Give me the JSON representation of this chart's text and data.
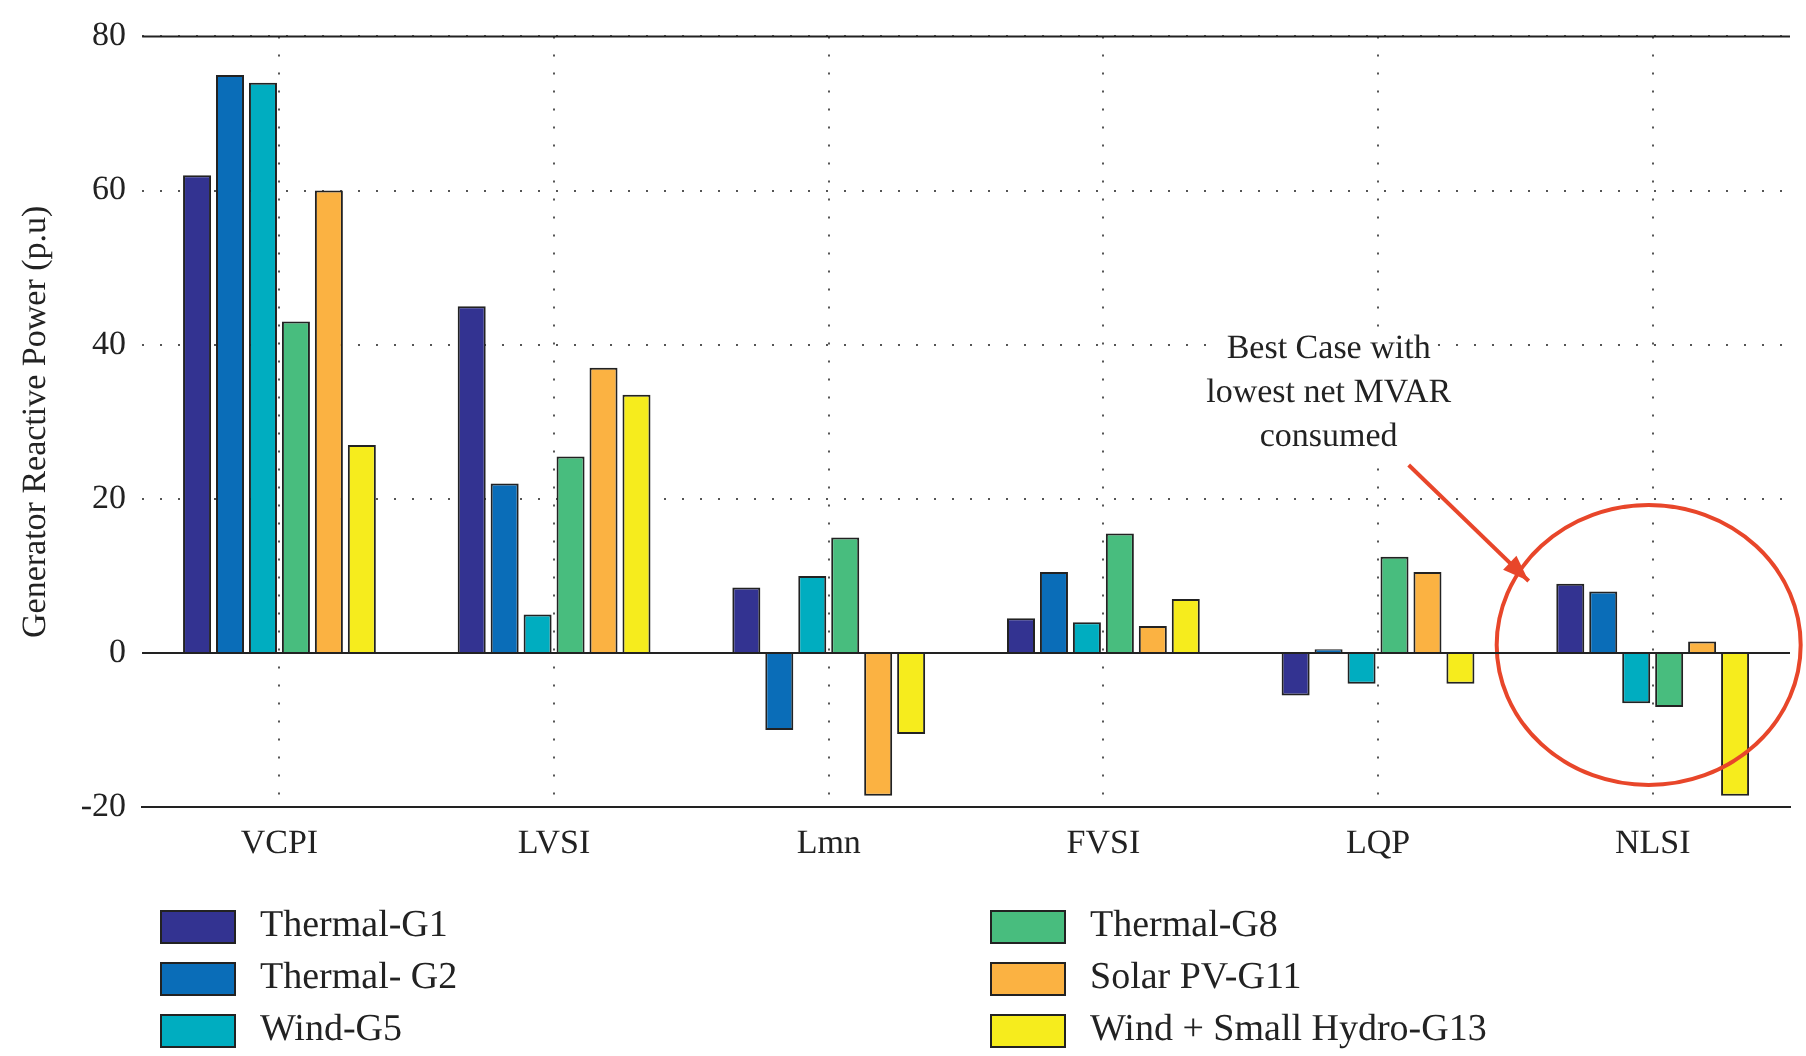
{
  "chart_data": {
    "type": "bar",
    "ylabel": "Generator Reactive Power (p.u)",
    "categories": [
      "VCPI",
      "LVSI",
      "Lmn",
      "FVSI",
      "LQP",
      "NLSI"
    ],
    "series": [
      {
        "name": "Thermal-G1",
        "color": "#333391",
        "values": [
          62,
          45,
          8.5,
          4.5,
          -5.5,
          9
        ]
      },
      {
        "name": "Thermal- G2",
        "color": "#0a6db8",
        "values": [
          75,
          22,
          -10,
          10.5,
          0.5,
          8
        ]
      },
      {
        "name": "Wind-G5",
        "color": "#00adc0",
        "values": [
          74,
          5,
          10,
          4,
          -4,
          -6.5
        ]
      },
      {
        "name": "Thermal-G8",
        "color": "#48bd7e",
        "values": [
          43,
          25.5,
          15,
          15.5,
          12.5,
          -7
        ]
      },
      {
        "name": "Solar PV-G11",
        "color": "#fbb242",
        "values": [
          60,
          37,
          -18.5,
          3.5,
          10.5,
          1.5
        ]
      },
      {
        "name": "Wind + Small Hydro-G13",
        "color": "#f6ec1d",
        "values": [
          27,
          33.5,
          -10.5,
          7,
          -4,
          -18.5
        ]
      }
    ],
    "ylim": [
      -20,
      80
    ],
    "yticks": [
      -20,
      0,
      20,
      40,
      60,
      80
    ],
    "grid": true,
    "legend": "bottom",
    "annotations": [
      "Best Case with\nlowest net MVAR\nconsumed"
    ]
  }
}
